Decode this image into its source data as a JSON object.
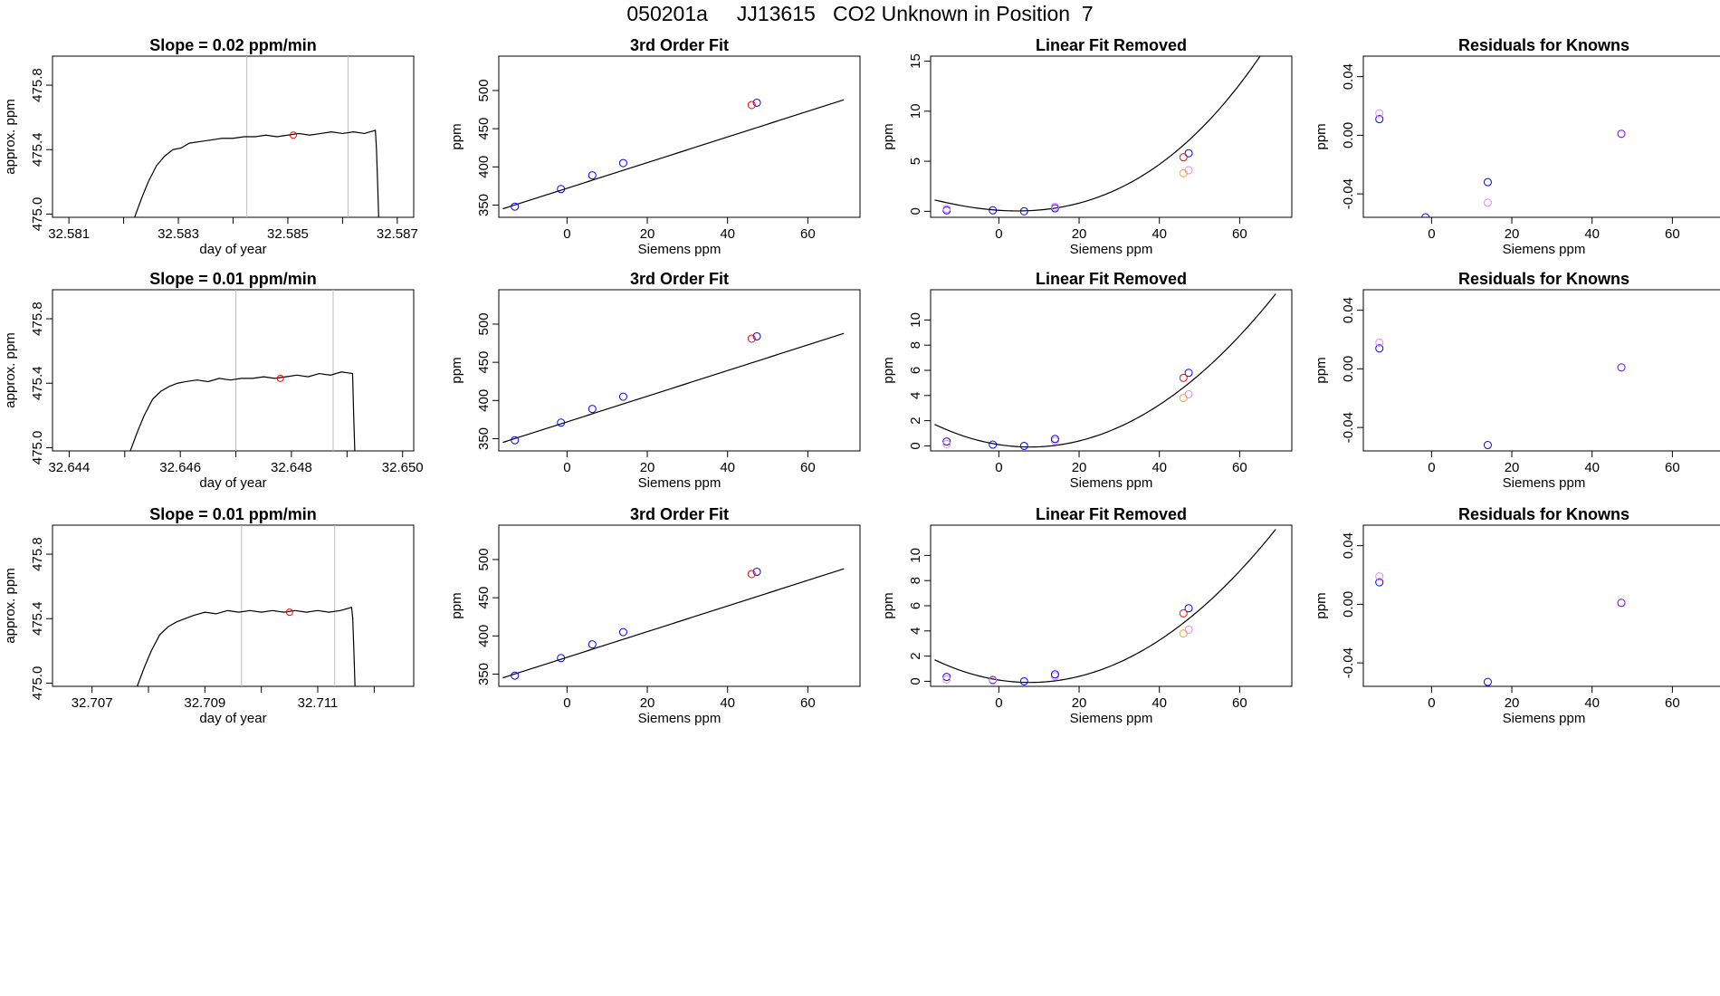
{
  "title": "050201a     JJ13615   CO2 Unknown in Position  7",
  "colors": {
    "curve": "#000000",
    "frame": "#000000",
    "grid": "#bebebe",
    "red": "#ff0000",
    "blue": "#0000ff",
    "orange": "#ffa500",
    "violet": "#ee82ee",
    "purple": "#a020f0"
  },
  "chart_data": [
    {
      "type": "line",
      "row": 0,
      "col": 0,
      "title": "Slope =  0.02  ppm/min",
      "xlabel": "day of year",
      "ylabel": "approx. ppm",
      "xlim": [
        32.5807,
        32.5873
      ],
      "ylim": [
        474.98,
        475.98
      ],
      "xticks": [
        32.581,
        32.582,
        32.583,
        32.584,
        32.585,
        32.586,
        32.587
      ],
      "xtick_labels": [
        "32.581",
        "",
        "32.583",
        "",
        "32.585",
        "",
        "32.587"
      ],
      "yticks": [
        475.0,
        475.4,
        475.8
      ],
      "ytick_labels": [
        "475.0",
        "475.4",
        "475.8"
      ],
      "vlines": [
        32.58425,
        32.5861
      ],
      "x": [
        32.5822,
        32.58233,
        32.58245,
        32.5826,
        32.58275,
        32.5829,
        32.58305,
        32.5832,
        32.5834,
        32.5836,
        32.5838,
        32.584,
        32.5842,
        32.5844,
        32.5846,
        32.5848,
        32.585,
        32.5852,
        32.5854,
        32.5856,
        32.5858,
        32.586,
        32.5862,
        32.5864,
        32.5866,
        32.58662,
        32.58664,
        32.58666
      ],
      "y": [
        474.98,
        475.1,
        475.2,
        475.3,
        475.36,
        475.4,
        475.41,
        475.44,
        475.45,
        475.46,
        475.47,
        475.47,
        475.48,
        475.48,
        475.49,
        475.48,
        475.49,
        475.5,
        475.49,
        475.5,
        475.51,
        475.5,
        475.51,
        475.5,
        475.52,
        475.4,
        475.2,
        474.98
      ],
      "marker": {
        "x": 32.5851,
        "y": 475.49,
        "color": "red"
      }
    },
    {
      "type": "scatter",
      "row": 0,
      "col": 1,
      "title": "3rd Order Fit",
      "xlabel": "Siemens ppm",
      "ylabel": "ppm",
      "xlim": [
        -17,
        73
      ],
      "ylim": [
        334,
        545
      ],
      "xticks": [
        0,
        20,
        40,
        60
      ],
      "xtick_labels": [
        "0",
        "20",
        "40",
        "60"
      ],
      "yticks": [
        350,
        400,
        450,
        500
      ],
      "ytick_labels": [
        "350",
        "400",
        "450",
        "500"
      ],
      "curve": {
        "coef": [
          372.0,
          1.68,
          0.0,
          0.0
        ],
        "from": -16,
        "to": 69
      },
      "points": [
        {
          "x": -13,
          "y": 348,
          "color": "blue"
        },
        {
          "x": -1.5,
          "y": 371,
          "color": "blue"
        },
        {
          "x": 6.3,
          "y": 389,
          "color": "blue"
        },
        {
          "x": 14,
          "y": 405,
          "color": "blue"
        },
        {
          "x": 47.3,
          "y": 484,
          "color": "blue"
        },
        {
          "x": 46,
          "y": 481,
          "color": "red"
        }
      ]
    },
    {
      "type": "scatter",
      "row": 0,
      "col": 2,
      "title": "Linear Fit Removed",
      "xlabel": "Siemens ppm",
      "ylabel": "ppm",
      "xlim": [
        -17,
        73
      ],
      "ylim": [
        -0.6,
        15.5
      ],
      "xticks": [
        0,
        20,
        40,
        60
      ],
      "xtick_labels": [
        "0",
        "20",
        "40",
        "60"
      ],
      "yticks": [
        0,
        5,
        10,
        15
      ],
      "ytick_labels": [
        "0",
        "5",
        "10",
        "15"
      ],
      "curve": {
        "coef": [
          0.1,
          -0.0266,
          0.00272,
          2.03e-05
        ],
        "from": -16,
        "to": 69
      },
      "points": [
        {
          "x": -13,
          "y": 0.1,
          "color": "blue"
        },
        {
          "x": -13,
          "y": 0.25,
          "color": "violet"
        },
        {
          "x": -1.5,
          "y": 0.1,
          "color": "blue"
        },
        {
          "x": 6.3,
          "y": 0.0,
          "color": "blue"
        },
        {
          "x": 14,
          "y": 0.3,
          "color": "blue"
        },
        {
          "x": 14,
          "y": 0.45,
          "color": "violet"
        },
        {
          "x": 47.3,
          "y": 5.8,
          "color": "blue"
        },
        {
          "x": 46,
          "y": 5.4,
          "color": "red"
        },
        {
          "x": 46,
          "y": 3.8,
          "color": "orange"
        },
        {
          "x": 47.3,
          "y": 4.1,
          "color": "violet"
        }
      ]
    },
    {
      "type": "scatter",
      "row": 0,
      "col": 3,
      "title": "Residuals for Knowns",
      "xlabel": "Siemens ppm",
      "ylabel": "ppm",
      "xlim": [
        -17,
        73
      ],
      "ylim": [
        -0.056,
        0.054
      ],
      "xticks": [
        0,
        20,
        40,
        60
      ],
      "xtick_labels": [
        "0",
        "20",
        "40",
        "60"
      ],
      "yticks": [
        -0.04,
        0.0,
        0.04
      ],
      "ytick_labels": [
        "-0.04",
        "0.00",
        "0.04"
      ],
      "points": [
        {
          "x": -13,
          "y": 0.011,
          "color": "blue"
        },
        {
          "x": -13,
          "y": 0.015,
          "color": "violet"
        },
        {
          "x": -1.5,
          "y": -0.056,
          "color": "blue"
        },
        {
          "x": 14,
          "y": -0.032,
          "color": "blue"
        },
        {
          "x": 14,
          "y": -0.046,
          "color": "violet"
        },
        {
          "x": 47.3,
          "y": 0.001,
          "color": "blue"
        },
        {
          "x": 47.3,
          "y": 0.001,
          "color": "purple"
        }
      ]
    },
    {
      "type": "line",
      "row": 1,
      "col": 0,
      "title": "Slope =  0.01  ppm/min",
      "xlabel": "day of year",
      "ylabel": "approx. ppm",
      "xlim": [
        32.6437,
        32.6502
      ],
      "ylim": [
        474.98,
        475.98
      ],
      "xticks": [
        32.644,
        32.645,
        32.646,
        32.647,
        32.648,
        32.649,
        32.65
      ],
      "xtick_labels": [
        "32.644",
        "",
        "32.646",
        "",
        "32.648",
        "",
        "32.650"
      ],
      "yticks": [
        475.0,
        475.4,
        475.8
      ],
      "ytick_labels": [
        "475.0",
        "475.4",
        "475.8"
      ],
      "vlines": [
        32.647,
        32.64875
      ],
      "x": [
        32.6451,
        32.64523,
        32.64535,
        32.6455,
        32.64565,
        32.6458,
        32.64595,
        32.6461,
        32.6463,
        32.6465,
        32.6467,
        32.6469,
        32.6471,
        32.6473,
        32.6475,
        32.6477,
        32.6479,
        32.6481,
        32.6483,
        32.6485,
        32.6487,
        32.6489,
        32.6491,
        32.64912,
        32.64914
      ],
      "y": [
        474.98,
        475.1,
        475.2,
        475.3,
        475.35,
        475.38,
        475.4,
        475.41,
        475.42,
        475.41,
        475.43,
        475.42,
        475.43,
        475.43,
        475.44,
        475.43,
        475.44,
        475.45,
        475.44,
        475.46,
        475.45,
        475.47,
        475.46,
        475.2,
        474.98
      ],
      "marker": {
        "x": 32.6478,
        "y": 475.43,
        "color": "red"
      }
    },
    {
      "type": "scatter",
      "row": 1,
      "col": 1,
      "title": "3rd Order Fit",
      "xlabel": "Siemens ppm",
      "ylabel": "ppm",
      "xlim": [
        -17,
        73
      ],
      "ylim": [
        334,
        545
      ],
      "xticks": [
        0,
        20,
        40,
        60
      ],
      "xtick_labels": [
        "0",
        "20",
        "40",
        "60"
      ],
      "yticks": [
        350,
        400,
        450,
        500
      ],
      "ytick_labels": [
        "350",
        "400",
        "450",
        "500"
      ],
      "curve": {
        "coef": [
          372.0,
          1.68,
          0.0,
          0.0
        ],
        "from": -16,
        "to": 69
      },
      "points": [
        {
          "x": -13,
          "y": 348,
          "color": "blue"
        },
        {
          "x": -1.5,
          "y": 371,
          "color": "blue"
        },
        {
          "x": 6.3,
          "y": 389,
          "color": "blue"
        },
        {
          "x": 14,
          "y": 405,
          "color": "blue"
        },
        {
          "x": 47.3,
          "y": 484,
          "color": "blue"
        },
        {
          "x": 46,
          "y": 481,
          "color": "red"
        }
      ]
    },
    {
      "type": "scatter",
      "row": 1,
      "col": 2,
      "title": "Linear Fit Removed",
      "xlabel": "Siemens ppm",
      "ylabel": "ppm",
      "xlim": [
        -17,
        73
      ],
      "ylim": [
        -0.4,
        12.4
      ],
      "xticks": [
        0,
        20,
        40,
        60
      ],
      "xtick_labels": [
        "0",
        "20",
        "40",
        "60"
      ],
      "yticks": [
        0,
        2,
        4,
        6,
        8,
        10
      ],
      "ytick_labels": [
        "0",
        "2",
        "4",
        "6",
        "8",
        "10"
      ],
      "curve": {
        "coef": [
          0.1,
          -0.0495,
          0.00319,
          6.25e-07
        ],
        "from": -16,
        "to": 69
      },
      "points": [
        {
          "x": -13,
          "y": 0.35,
          "color": "blue"
        },
        {
          "x": -13,
          "y": 0.15,
          "color": "violet"
        },
        {
          "x": -1.5,
          "y": 0.1,
          "color": "blue"
        },
        {
          "x": 6.3,
          "y": 0.0,
          "color": "blue"
        },
        {
          "x": 14,
          "y": 0.4,
          "color": "violet"
        },
        {
          "x": 14,
          "y": 0.55,
          "color": "blue"
        },
        {
          "x": 47.3,
          "y": 5.8,
          "color": "blue"
        },
        {
          "x": 46,
          "y": 5.4,
          "color": "red"
        },
        {
          "x": 46,
          "y": 3.8,
          "color": "orange"
        },
        {
          "x": 47.3,
          "y": 4.1,
          "color": "violet"
        }
      ]
    },
    {
      "type": "scatter",
      "row": 1,
      "col": 3,
      "title": "Residuals for Knowns",
      "xlabel": "Siemens ppm",
      "ylabel": "ppm",
      "xlim": [
        -17,
        73
      ],
      "ylim": [
        -0.056,
        0.054
      ],
      "xticks": [
        0,
        20,
        40,
        60
      ],
      "xtick_labels": [
        "0",
        "20",
        "40",
        "60"
      ],
      "yticks": [
        -0.04,
        0.0,
        0.04
      ],
      "ytick_labels": [
        "-0.04",
        "0.00",
        "0.04"
      ],
      "points": [
        {
          "x": -13,
          "y": 0.014,
          "color": "blue"
        },
        {
          "x": -13,
          "y": 0.018,
          "color": "violet"
        },
        {
          "x": 14,
          "y": -0.052,
          "color": "blue"
        },
        {
          "x": 47.3,
          "y": 0.001,
          "color": "blue"
        },
        {
          "x": 47.3,
          "y": 0.001,
          "color": "purple"
        }
      ]
    },
    {
      "type": "line",
      "row": 2,
      "col": 0,
      "title": "Slope =  0.01  ppm/min",
      "xlabel": "day of year",
      "ylabel": "approx. ppm",
      "xlim": [
        32.7063,
        32.7127
      ],
      "ylim": [
        474.98,
        475.98
      ],
      "xticks": [
        32.707,
        32.708,
        32.709,
        32.71,
        32.711,
        32.712
      ],
      "xtick_labels": [
        "32.707",
        "",
        "32.709",
        "",
        "32.711",
        ""
      ],
      "yticks": [
        475.0,
        475.4,
        475.8
      ],
      "ytick_labels": [
        "475.0",
        "475.4",
        "475.8"
      ],
      "vlines": [
        32.70965,
        32.7113
      ],
      "x": [
        32.7078,
        32.70793,
        32.70805,
        32.7082,
        32.70835,
        32.7085,
        32.70865,
        32.7088,
        32.709,
        32.7092,
        32.7094,
        32.7096,
        32.7098,
        32.71,
        32.7102,
        32.7104,
        32.7106,
        32.7108,
        32.711,
        32.7112,
        32.7114,
        32.7116,
        32.71162,
        32.71164,
        32.71166
      ],
      "y": [
        474.98,
        475.1,
        475.2,
        475.3,
        475.35,
        475.38,
        475.4,
        475.42,
        475.44,
        475.43,
        475.45,
        475.44,
        475.45,
        475.44,
        475.45,
        475.44,
        475.45,
        475.44,
        475.45,
        475.44,
        475.45,
        475.47,
        475.4,
        475.2,
        474.98
      ],
      "marker": {
        "x": 32.7105,
        "y": 475.44,
        "color": "red"
      }
    },
    {
      "type": "scatter",
      "row": 2,
      "col": 1,
      "title": "3rd Order Fit",
      "xlabel": "Siemens ppm",
      "ylabel": "ppm",
      "xlim": [
        -17,
        73
      ],
      "ylim": [
        334,
        545
      ],
      "xticks": [
        0,
        20,
        40,
        60
      ],
      "xtick_labels": [
        "0",
        "20",
        "40",
        "60"
      ],
      "yticks": [
        350,
        400,
        450,
        500
      ],
      "ytick_labels": [
        "350",
        "400",
        "450",
        "500"
      ],
      "curve": {
        "coef": [
          372.0,
          1.68,
          0.0,
          0.0
        ],
        "from": -16,
        "to": 69
      },
      "points": [
        {
          "x": -13,
          "y": 348,
          "color": "blue"
        },
        {
          "x": -1.5,
          "y": 371,
          "color": "blue"
        },
        {
          "x": 6.3,
          "y": 389,
          "color": "blue"
        },
        {
          "x": 14,
          "y": 405,
          "color": "blue"
        },
        {
          "x": 47.3,
          "y": 484,
          "color": "blue"
        },
        {
          "x": 46,
          "y": 481,
          "color": "red"
        }
      ]
    },
    {
      "type": "scatter",
      "row": 2,
      "col": 2,
      "title": "Linear Fit Removed",
      "xlabel": "Siemens ppm",
      "ylabel": "ppm",
      "xlim": [
        -17,
        73
      ],
      "ylim": [
        -0.4,
        12.4
      ],
      "xticks": [
        0,
        20,
        40,
        60
      ],
      "xtick_labels": [
        "0",
        "20",
        "40",
        "60"
      ],
      "yticks": [
        0,
        2,
        4,
        6,
        8,
        10
      ],
      "ytick_labels": [
        "0",
        "2",
        "4",
        "6",
        "8",
        "10"
      ],
      "curve": {
        "coef": [
          0.1,
          -0.0495,
          0.00319,
          6.25e-07
        ],
        "from": -16,
        "to": 69
      },
      "points": [
        {
          "x": -13,
          "y": 0.35,
          "color": "blue"
        },
        {
          "x": -13,
          "y": 0.15,
          "color": "violet"
        },
        {
          "x": -1.5,
          "y": 0.1,
          "color": "blue"
        },
        {
          "x": -1.5,
          "y": 0.05,
          "color": "violet"
        },
        {
          "x": 6.3,
          "y": 0.0,
          "color": "blue"
        },
        {
          "x": 14,
          "y": 0.4,
          "color": "violet"
        },
        {
          "x": 14,
          "y": 0.55,
          "color": "blue"
        },
        {
          "x": 47.3,
          "y": 5.8,
          "color": "blue"
        },
        {
          "x": 46,
          "y": 5.4,
          "color": "red"
        },
        {
          "x": 46,
          "y": 3.8,
          "color": "orange"
        },
        {
          "x": 47.3,
          "y": 4.1,
          "color": "violet"
        }
      ]
    },
    {
      "type": "scatter",
      "row": 2,
      "col": 3,
      "title": "Residuals for Knowns",
      "xlabel": "Siemens ppm",
      "ylabel": "ppm",
      "xlim": [
        -17,
        73
      ],
      "ylim": [
        -0.056,
        0.054
      ],
      "xticks": [
        0,
        20,
        40,
        60
      ],
      "xtick_labels": [
        "0",
        "20",
        "40",
        "60"
      ],
      "yticks": [
        -0.04,
        0.0,
        0.04
      ],
      "ytick_labels": [
        "-0.04",
        "0.00",
        "0.04"
      ],
      "points": [
        {
          "x": -13,
          "y": 0.015,
          "color": "blue"
        },
        {
          "x": -13,
          "y": 0.019,
          "color": "violet"
        },
        {
          "x": 14,
          "y": -0.053,
          "color": "blue"
        },
        {
          "x": 47.3,
          "y": 0.001,
          "color": "blue"
        },
        {
          "x": 47.3,
          "y": 0.001,
          "color": "purple"
        }
      ]
    }
  ]
}
